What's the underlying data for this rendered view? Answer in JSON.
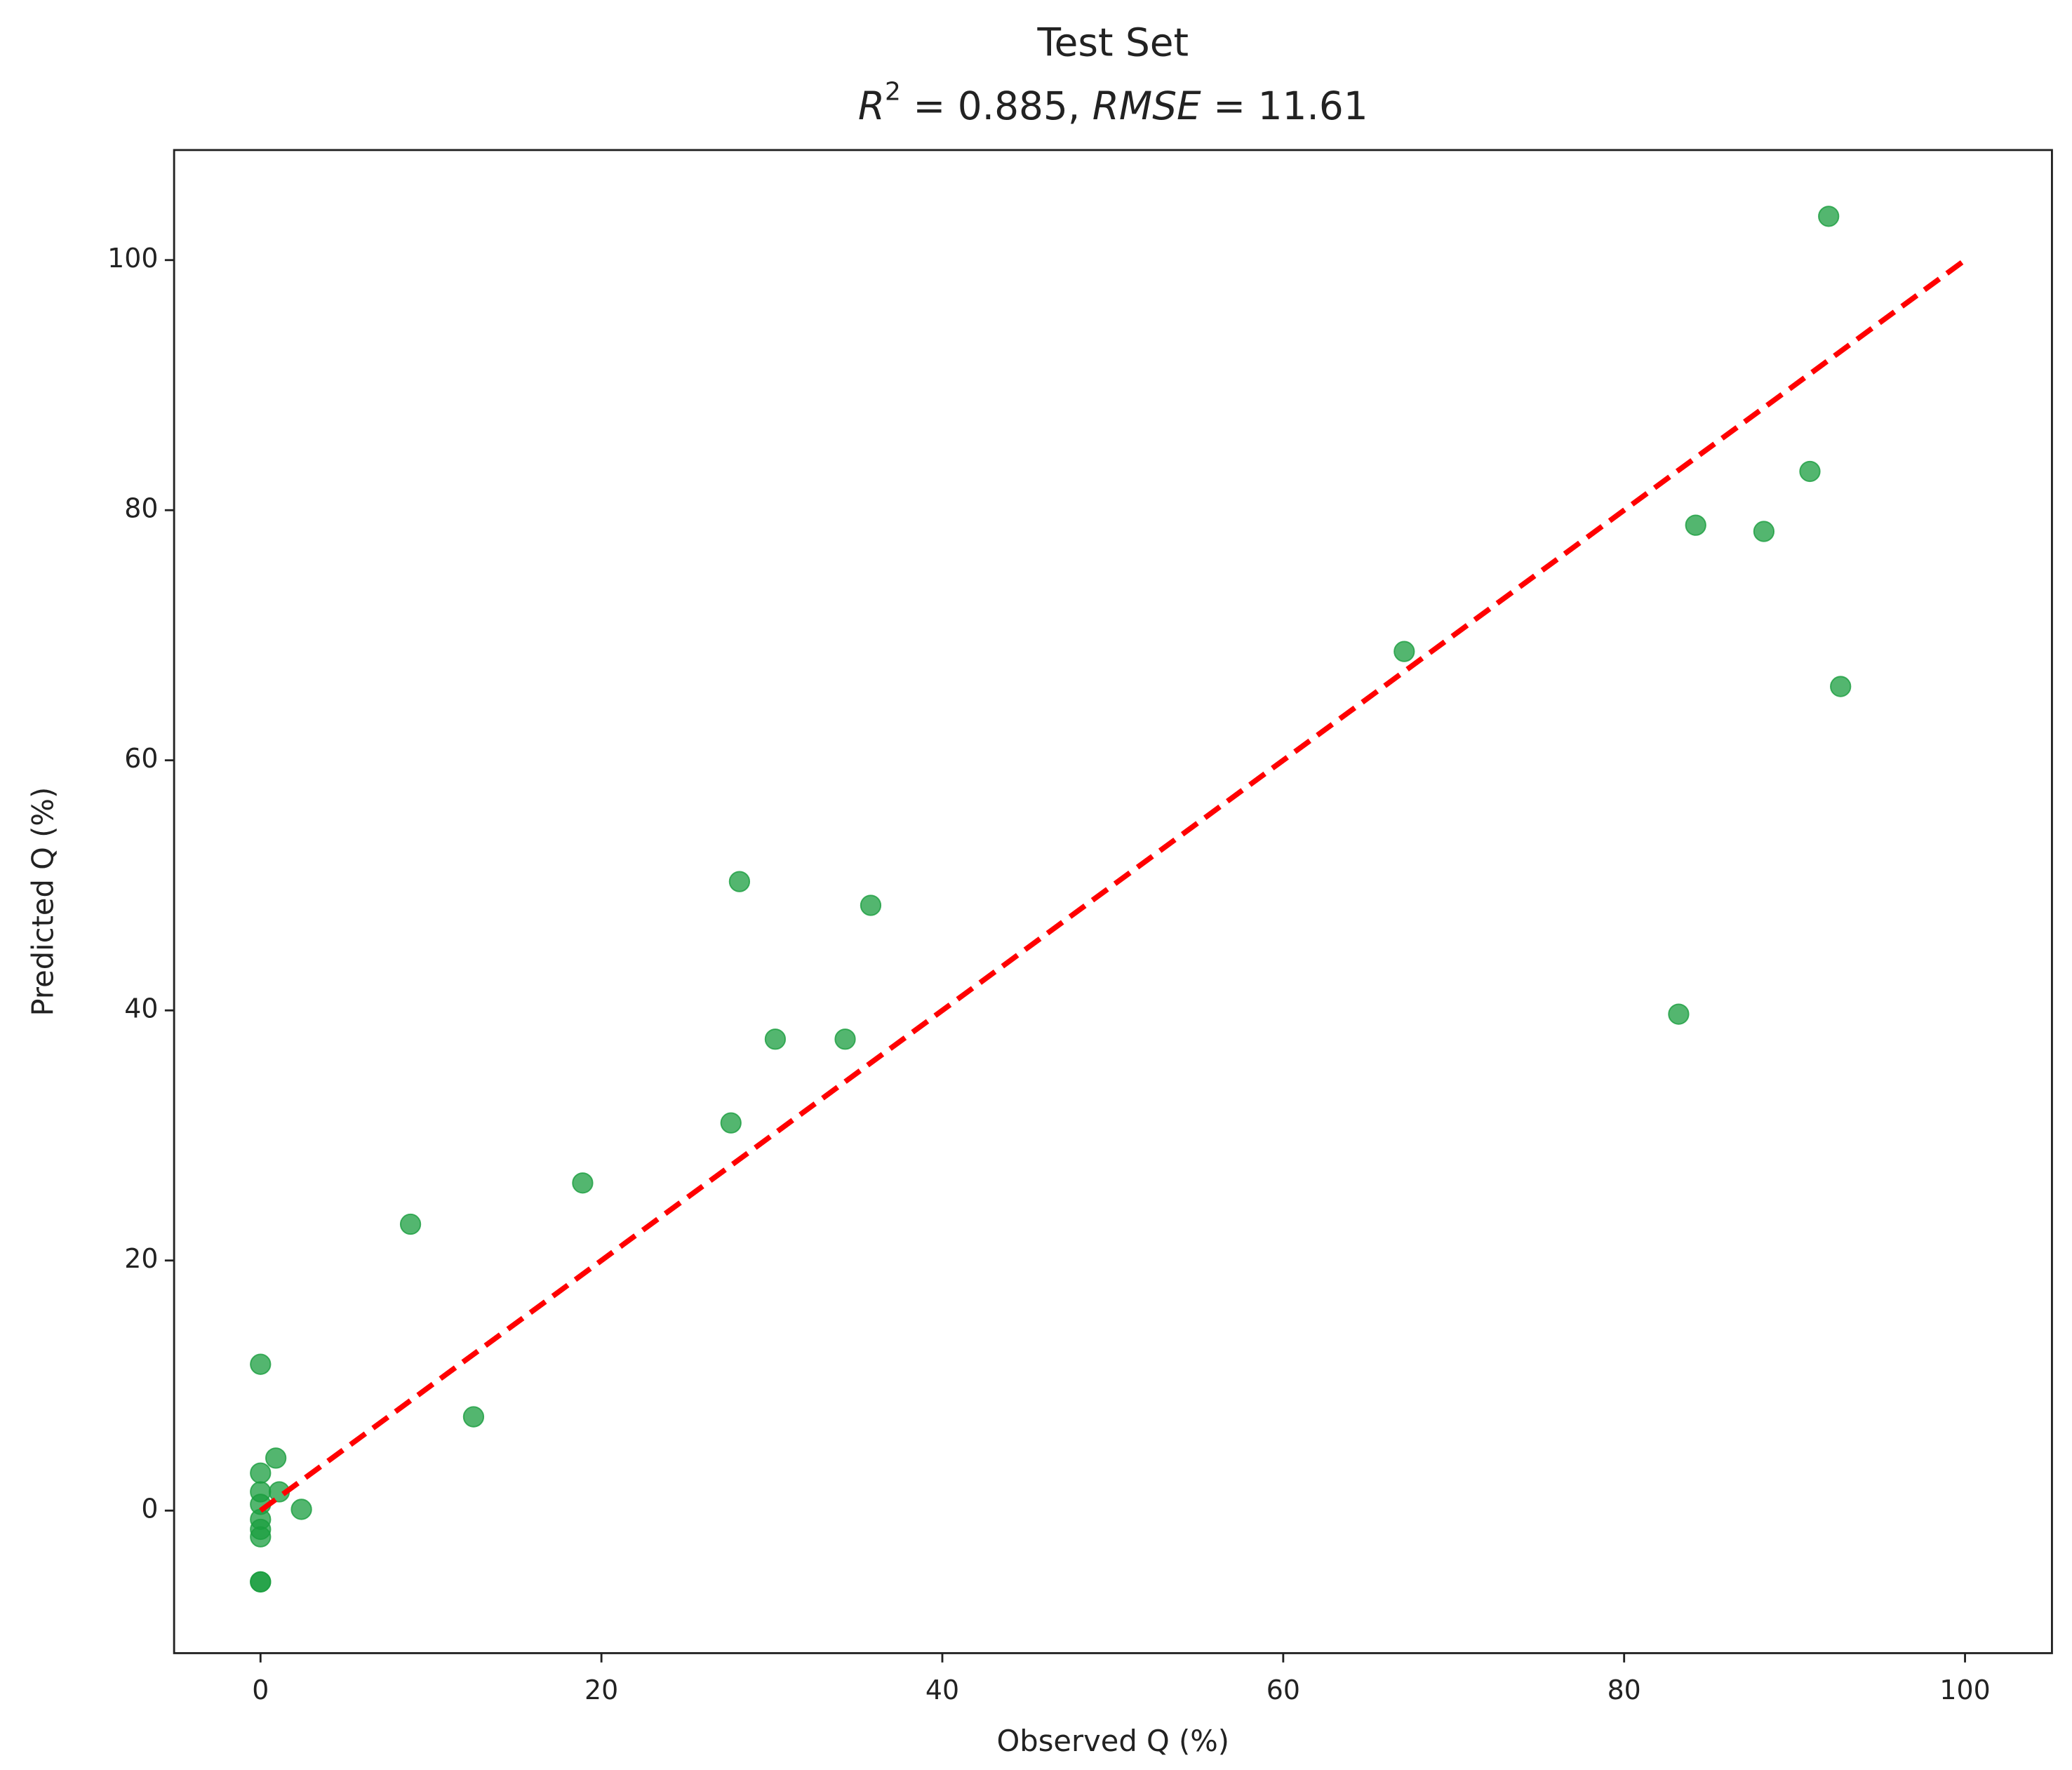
{
  "chart_data": {
    "type": "scatter",
    "title": "Test Set",
    "subtitle_parts": [
      "R",
      "2",
      " = 0.885, ",
      "RMSE",
      " = 11.61"
    ],
    "x_label": "Observed Q (%)",
    "y_label": "Predicted Q (%)",
    "xlim": [
      -5.07,
      105.1
    ],
    "ylim": [
      -11.4,
      108.8
    ],
    "xticks": [
      0,
      20,
      40,
      60,
      80,
      100
    ],
    "yticks": [
      0,
      20,
      40,
      60,
      80,
      100
    ],
    "color": "#1a9e3f",
    "x": [
      92.0,
      90.9,
      84.2,
      88.2,
      67.1,
      92.7,
      28.1,
      35.8,
      83.2,
      30.2,
      34.3,
      27.6,
      18.9,
      8.8,
      0,
      12.5,
      0.9,
      0,
      1.1,
      0,
      0,
      2.4,
      0,
      0,
      0,
      0,
      0
    ],
    "values": [
      103.5,
      83.1,
      78.8,
      78.3,
      68.7,
      65.9,
      50.3,
      48.4,
      39.7,
      37.7,
      37.7,
      31.0,
      26.2,
      22.9,
      11.7,
      7.5,
      4.2,
      3.0,
      1.5,
      1.5,
      0.5,
      0.1,
      -0.7,
      -1.5,
      -2.1,
      -5.7,
      -5.7
    ],
    "reference_line": {
      "x": [
        0,
        100
      ],
      "y": [
        0,
        100
      ],
      "color": "#ff0000"
    }
  }
}
